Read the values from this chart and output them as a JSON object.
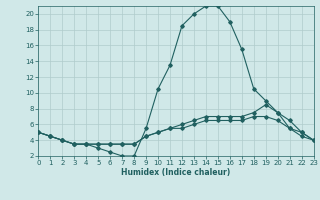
{
  "title": "",
  "xlabel": "Humidex (Indice chaleur)",
  "ylabel": "",
  "background_color": "#d0e8e8",
  "grid_color": "#b0cccc",
  "line_color": "#206060",
  "xlim": [
    0,
    23
  ],
  "ylim": [
    2,
    21
  ],
  "yticks": [
    2,
    4,
    6,
    8,
    10,
    12,
    14,
    16,
    18,
    20
  ],
  "xticks": [
    0,
    1,
    2,
    3,
    4,
    5,
    6,
    7,
    8,
    9,
    10,
    11,
    12,
    13,
    14,
    15,
    16,
    17,
    18,
    19,
    20,
    21,
    22,
    23
  ],
  "curve1_x": [
    0,
    1,
    2,
    3,
    4,
    5,
    6,
    7,
    8,
    9,
    10,
    11,
    12,
    13,
    14,
    15,
    16,
    17,
    18,
    19,
    20,
    21,
    22,
    23
  ],
  "curve1_y": [
    5.0,
    4.5,
    4.0,
    3.5,
    3.5,
    3.0,
    2.5,
    2.0,
    2.0,
    5.5,
    10.5,
    13.5,
    18.5,
    20.0,
    21.0,
    21.0,
    19.0,
    15.5,
    10.5,
    9.0,
    7.5,
    5.5,
    5.0,
    4.0
  ],
  "curve2_x": [
    0,
    1,
    2,
    3,
    4,
    5,
    6,
    7,
    8,
    9,
    10,
    11,
    12,
    13,
    14,
    15,
    16,
    17,
    18,
    19,
    20,
    21,
    22,
    23
  ],
  "curve2_y": [
    5.0,
    4.5,
    4.0,
    3.5,
    3.5,
    3.5,
    3.5,
    3.5,
    3.5,
    4.5,
    5.0,
    5.5,
    6.0,
    6.5,
    7.0,
    7.0,
    7.0,
    7.0,
    7.5,
    8.5,
    7.5,
    6.5,
    5.0,
    4.0
  ],
  "curve3_x": [
    0,
    1,
    2,
    3,
    4,
    5,
    6,
    7,
    8,
    9,
    10,
    11,
    12,
    13,
    14,
    15,
    16,
    17,
    18,
    19,
    20,
    21,
    22,
    23
  ],
  "curve3_y": [
    5.0,
    4.5,
    4.0,
    3.5,
    3.5,
    3.5,
    3.5,
    3.5,
    3.5,
    4.5,
    5.0,
    5.5,
    5.5,
    6.0,
    6.5,
    6.5,
    6.5,
    6.5,
    7.0,
    7.0,
    6.5,
    5.5,
    4.5,
    4.0
  ],
  "marker_style": "D",
  "marker_size": 1.8,
  "line_width": 0.8,
  "tick_fontsize": 5.0,
  "xlabel_fontsize": 5.5
}
